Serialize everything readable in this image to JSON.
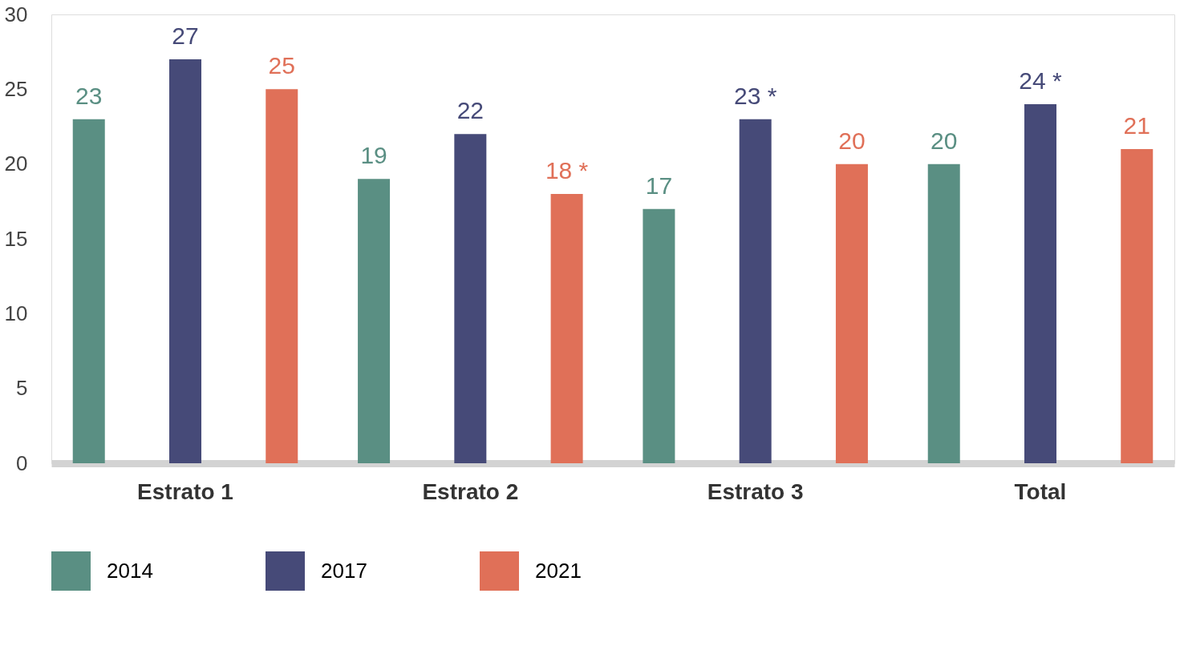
{
  "chart_data": {
    "type": "bar",
    "categories": [
      "Estrato 1",
      "Estrato 2",
      "Estrato 3",
      "Total"
    ],
    "series": [
      {
        "name": "2014",
        "color": "#5a8f83",
        "values": [
          23,
          19,
          17,
          20
        ],
        "value_labels": [
          "23",
          "19",
          "17",
          "20"
        ]
      },
      {
        "name": "2017",
        "color": "#464a78",
        "values": [
          27,
          22,
          23,
          24
        ],
        "value_labels": [
          "27",
          "22",
          "23 *",
          "24 *"
        ]
      },
      {
        "name": "2021",
        "color": "#e07058",
        "values": [
          25,
          18,
          20,
          21
        ],
        "value_labels": [
          "25",
          "18 *",
          "20",
          "21"
        ]
      }
    ],
    "ylim": [
      0,
      30
    ],
    "yticks": [
      0,
      5,
      10,
      15,
      20,
      25,
      30
    ],
    "grid": false,
    "legend": "bottom"
  }
}
